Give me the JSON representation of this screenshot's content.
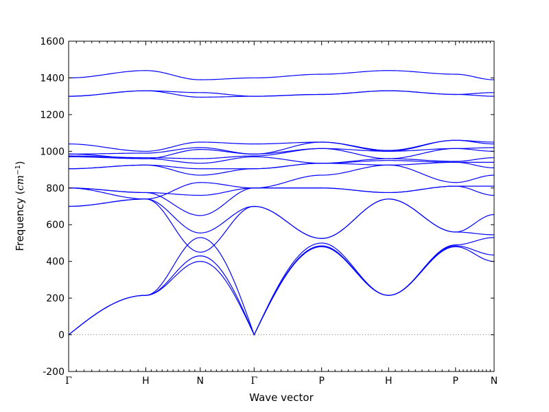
{
  "chart_data": {
    "type": "line",
    "xlabel": "Wave vector",
    "ylabel": {
      "text": "Frequency",
      "unit_open": " (",
      "unit": "cm",
      "unit_exp": "−1",
      "unit_close": ")"
    },
    "ylim": [
      -200,
      1600
    ],
    "yticks": [
      -200,
      0,
      200,
      400,
      600,
      800,
      1000,
      1200,
      1400,
      1600
    ],
    "x_range": [
      0,
      7.5
    ],
    "high_symmetry_points": [
      {
        "label": "Γ",
        "x": 0
      },
      {
        "label": "H",
        "x": 1.36
      },
      {
        "label": "N",
        "x": 2.32
      },
      {
        "label": "Γ",
        "x": 3.27
      },
      {
        "label": "P",
        "x": 4.46
      },
      {
        "label": "H",
        "x": 5.64
      },
      {
        "label": "P",
        "x": 6.82
      },
      {
        "label": "N",
        "x": 7.5
      }
    ],
    "minor_ticks_per_segment": 10,
    "zero_line": {
      "y": 0,
      "style": "dotted"
    },
    "grid": false,
    "line_color": "#0000ff",
    "band_values_at_points": [
      [
        0,
        215,
        400,
        0,
        480,
        215,
        480,
        400
      ],
      [
        0,
        215,
        430,
        0,
        485,
        215,
        485,
        435
      ],
      [
        0,
        215,
        530,
        0,
        500,
        215,
        490,
        530
      ],
      [
        700,
        740,
        450,
        700,
        525,
        740,
        560,
        545
      ],
      [
        700,
        740,
        555,
        700,
        525,
        740,
        560,
        655
      ],
      [
        800,
        775,
        650,
        800,
        800,
        775,
        810,
        760
      ],
      [
        800,
        775,
        760,
        800,
        800,
        775,
        810,
        810
      ],
      [
        800,
        740,
        830,
        800,
        870,
        925,
        830,
        870
      ],
      [
        905,
        925,
        870,
        905,
        935,
        925,
        940,
        910
      ],
      [
        905,
        925,
        905,
        905,
        935,
        950,
        940,
        940
      ],
      [
        970,
        960,
        935,
        970,
        935,
        960,
        945,
        965
      ],
      [
        975,
        965,
        960,
        975,
        1015,
        960,
        1015,
        1000
      ],
      [
        985,
        960,
        1010,
        985,
        1015,
        1000,
        1015,
        1020
      ],
      [
        985,
        990,
        1020,
        985,
        1050,
        1000,
        1060,
        1040
      ],
      [
        1040,
        1000,
        1050,
        1040,
        1050,
        1005,
        1060,
        1050
      ],
      [
        1300,
        1330,
        1295,
        1300,
        1310,
        1330,
        1310,
        1300
      ],
      [
        1300,
        1330,
        1320,
        1300,
        1310,
        1330,
        1310,
        1320
      ],
      [
        1400,
        1440,
        1390,
        1400,
        1420,
        1440,
        1420,
        1390
      ]
    ]
  }
}
